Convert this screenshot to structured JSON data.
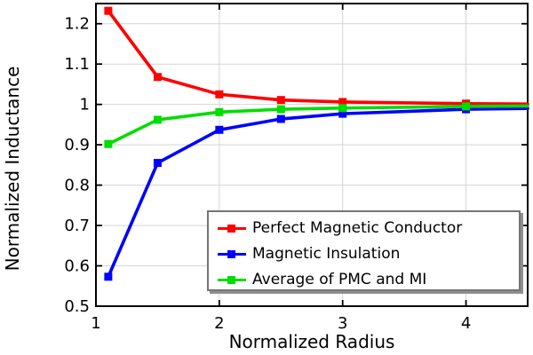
{
  "chart_data": {
    "type": "line",
    "title": "",
    "xlabel": "Normalized Radius",
    "ylabel": "Normalized Inductance",
    "xlim": [
      1,
      4.5
    ],
    "ylim": [
      0.5,
      1.25
    ],
    "x_ticks": [
      1,
      2,
      3,
      4
    ],
    "x_tick_labels": [
      "1",
      "2",
      "3",
      "4"
    ],
    "y_ticks": [
      0.5,
      0.6,
      0.7,
      0.8,
      0.9,
      1.0,
      1.1,
      1.2
    ],
    "y_tick_labels": [
      "0.5",
      "0.6",
      "0.7",
      "0.8",
      "0.9",
      "1",
      "1.1",
      "1.2"
    ],
    "grid": true,
    "legend_position": "inside-bottom-right",
    "marker": "square",
    "x": [
      1.1,
      1.5,
      2,
      2.5,
      3,
      4,
      4.5
    ],
    "marker_x": [
      1.1,
      1.5,
      2,
      2.5,
      3,
      4
    ],
    "series": [
      {
        "name": "Perfect Magnetic Conductor",
        "color": "#ff0000",
        "values": [
          1.232,
          1.068,
          1.025,
          1.011,
          1.006,
          1.002,
          1.001
        ]
      },
      {
        "name": "Magnetic Insulation",
        "color": "#0000ff",
        "values": [
          0.573,
          0.855,
          0.937,
          0.964,
          0.977,
          0.988,
          0.99
        ]
      },
      {
        "name": "Average of PMC and MI",
        "color": "#00dd00",
        "values": [
          0.902,
          0.962,
          0.981,
          0.988,
          0.991,
          0.995,
          0.996
        ]
      }
    ]
  },
  "colors": {
    "background": "#ffffff",
    "axis": "#000000",
    "grid": "#d4d4d4",
    "tick_label": "#000000",
    "legend_border": "#757575",
    "legend_shadow": "#8e8e8e"
  }
}
